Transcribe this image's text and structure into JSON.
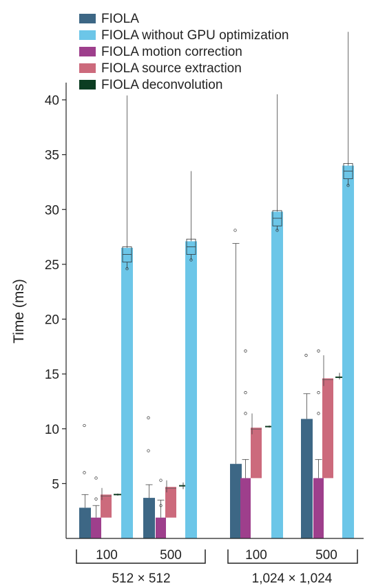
{
  "chart_data": {
    "type": "bar",
    "ylabel": "Time  (ms)",
    "ylim": [
      0,
      43.5
    ],
    "yticks": [
      5,
      10,
      15,
      20,
      25,
      30,
      35,
      40
    ],
    "grid": false,
    "legend_position": "top-left",
    "groups": [
      {
        "label": "512 × 512",
        "subgroups": [
          "100",
          "500"
        ]
      },
      {
        "label": "1,024 × 1,024",
        "subgroups": [
          "100",
          "500"
        ]
      }
    ],
    "categories": [
      "512 × 512 / 100",
      "512 × 512 / 500",
      "1,024 × 1,024 / 100",
      "1,024 × 1,024 / 500"
    ],
    "series": [
      {
        "name": "FIOLA",
        "color": "#3d6785",
        "values": [
          2.8,
          3.7,
          6.8,
          10.9
        ],
        "whisker_high": [
          4.0,
          4.9,
          26.9,
          13.2
        ],
        "outliers": [
          [
            10.3,
            6.0
          ],
          [
            11.0,
            8.0
          ],
          [
            28.1
          ],
          [
            16.7
          ]
        ]
      },
      {
        "name": "FIOLA without GPU optimization",
        "color": "#6cc6e8",
        "values": [
          26.5,
          27.1,
          29.8,
          34.0
        ],
        "median": [
          25.9,
          26.6,
          29.2,
          33.5
        ],
        "whisker_high": [
          40.4,
          33.5,
          40.5,
          46.2
        ],
        "whisker_low": [
          24.6,
          25.4,
          28.1,
          32.2
        ]
      },
      {
        "name": "FIOLA motion correction",
        "color": "#9e3f8c",
        "values": [
          1.9,
          1.9,
          5.5,
          5.5
        ],
        "whisker_high": [
          3.0,
          3.5,
          7.2,
          7.2
        ],
        "outliers": [
          [
            5.5,
            3.6
          ],
          [
            5.3,
            3.0
          ],
          [
            17.1,
            13.3,
            11.4
          ],
          [
            17.1,
            13.3,
            11.4
          ]
        ]
      },
      {
        "name": "FIOLA source extraction",
        "color": "#cc6a7c",
        "values": [
          4.0,
          4.7,
          10.1,
          14.6
        ],
        "whisker_high": [
          4.6,
          5.3,
          11.4,
          16.7
        ],
        "whisker_low": [
          3.5,
          4.2,
          9.5,
          13.9
        ]
      },
      {
        "name": "FIOLA deconvolution",
        "color": "#0c3d22",
        "values": [
          4.0,
          4.8,
          10.2,
          14.7
        ],
        "whisker_high": [
          4.1,
          5.1,
          10.3,
          15.1
        ],
        "whisker_low": [
          3.9,
          4.5,
          10.1,
          14.5
        ]
      }
    ]
  }
}
